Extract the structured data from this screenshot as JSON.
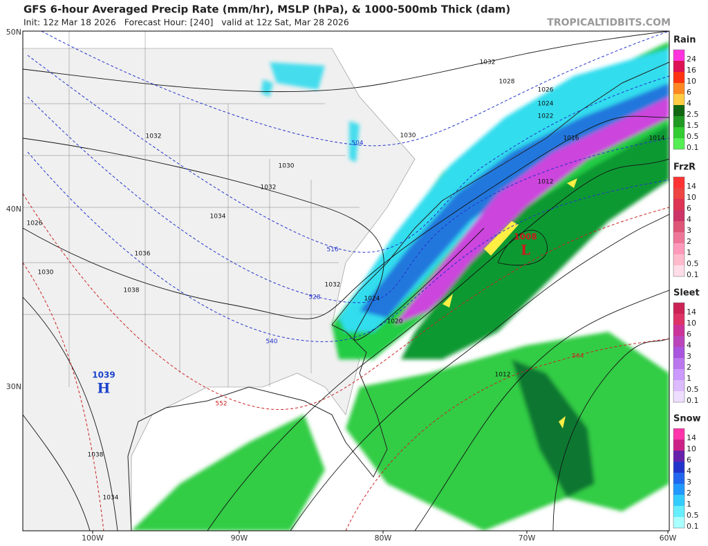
{
  "header": {
    "title": "GFS 6-hour Averaged Precip Rate (mm/hr), MSLP (hPa), & 1000-500mb Thick (dam)",
    "subtitle": "Init: 12z Mar 18 2026   Forecast Hour: [240]   valid at 12z Sat, Mar 28 2026",
    "credit": "TROPICALTIDBITS.COM"
  },
  "map": {
    "lat_labels": [
      "50N",
      "40N",
      "30N"
    ],
    "lon_labels": [
      "100W",
      "90W",
      "80W",
      "70W",
      "60W"
    ],
    "isobar_labels": [
      "1032",
      "1028",
      "1026",
      "1024",
      "1022",
      "1016",
      "1014",
      "1012",
      "1030",
      "1032",
      "1030",
      "1032",
      "1034",
      "1026",
      "1036",
      "1030",
      "1038",
      "1032",
      "1024",
      "1020",
      "1012",
      "1038",
      "1034"
    ],
    "thickness_labels": [
      "504",
      "516",
      "528",
      "540",
      "552",
      "564"
    ],
    "centers": [
      {
        "pressure": "1039",
        "letter": "H"
      },
      {
        "pressure": "1008",
        "letter": "L"
      }
    ]
  },
  "legends": [
    {
      "title": "Rain",
      "levels": [
        "24",
        "16",
        "10",
        "6",
        "4",
        "2.5",
        "1.5",
        "0.5",
        "0.1"
      ]
    },
    {
      "title": "FrzR",
      "levels": [
        "14",
        "10",
        "6",
        "4",
        "3",
        "2",
        "1",
        "0.5",
        "0.1"
      ]
    },
    {
      "title": "Sleet",
      "levels": [
        "14",
        "10",
        "6",
        "4",
        "3",
        "2",
        "1",
        "0.5",
        "0.1"
      ]
    },
    {
      "title": "Snow",
      "levels": [
        "14",
        "10",
        "6",
        "4",
        "3",
        "2",
        "1",
        "0.5",
        "0.1"
      ]
    }
  ]
}
